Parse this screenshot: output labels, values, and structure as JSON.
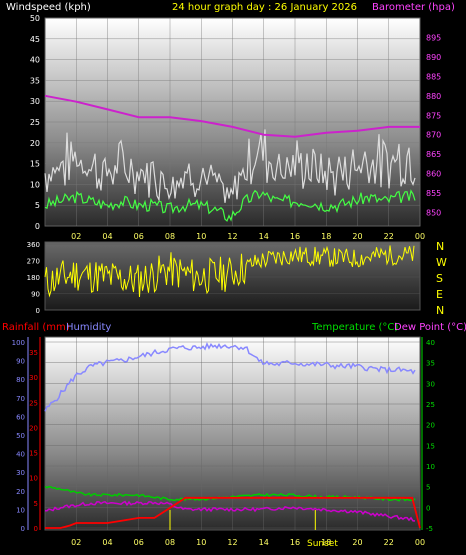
{
  "header": {
    "left": "Windspeed (kph)",
    "center": "24 hour graph day : 26 January 2026",
    "right": "Barometer (hpa)"
  },
  "labels": {
    "rainfall": "Rainfall (mm)",
    "humidity": "Humidity",
    "temperature": "Temperature (°C)",
    "dewpoint": "Dew Point (°C)",
    "sunset": "Sunset"
  },
  "colors": {
    "wind": "#ffffff",
    "gust": "#dddddd",
    "avgwind": "#44ff44",
    "barometer": "#cc22cc",
    "direction": "#ffff00",
    "rain": "#ff0000",
    "humidity": "#8888ff",
    "temperature": "#00cc00",
    "dewpoint": "#cc00cc",
    "tempaxis": "#00dd00",
    "headerleft": "#ffffff",
    "headercenter": "#ffff00",
    "baroaxis": "#ff44ff"
  },
  "chart_data": [
    {
      "type": "line",
      "title": "24 hour graph day : 26 January 2026",
      "x_ticks": [
        "02",
        "04",
        "06",
        "08",
        "10",
        "12",
        "14",
        "16",
        "18",
        "20",
        "22",
        "00"
      ],
      "left_axis": {
        "label": "Windspeed (kph)",
        "ticks": [
          0,
          5,
          10,
          15,
          20,
          25,
          30,
          35,
          40,
          45,
          50
        ]
      },
      "right_axis": {
        "label": "Barometer (hpa)",
        "ticks": [
          850,
          855,
          860,
          865,
          870,
          875,
          880,
          885,
          890,
          895
        ]
      },
      "series": [
        {
          "name": "Barometer (hpa)",
          "x": [
            0,
            2,
            4,
            6,
            8,
            10,
            12,
            14,
            16,
            18,
            20,
            22,
            24
          ],
          "values": [
            880.0,
            878.5,
            876.5,
            874.5,
            874.5,
            873.5,
            872.0,
            870.0,
            869.5,
            870.5,
            871.0,
            872.0,
            872.0
          ]
        },
        {
          "name": "Windspeed (kph)",
          "x": [
            0,
            1,
            2,
            3,
            4,
            5,
            6,
            7,
            8,
            9,
            10,
            11,
            12,
            13,
            14,
            15,
            16,
            17,
            18,
            19,
            20,
            21,
            22,
            23,
            24
          ],
          "values": [
            5,
            6,
            7,
            6,
            5,
            6,
            5,
            5,
            4,
            5,
            5,
            4,
            2,
            6,
            8,
            6,
            6,
            6,
            5,
            5,
            6,
            7,
            6,
            7,
            7
          ]
        }
      ]
    },
    {
      "type": "line",
      "left_axis": {
        "ticks": [
          0,
          90,
          180,
          270,
          360
        ]
      },
      "right_labels": [
        "N",
        "W",
        "S",
        "E",
        "N"
      ],
      "series": [
        {
          "name": "Wind direction",
          "x": [
            0,
            2,
            4,
            6,
            8,
            10,
            12,
            14,
            16,
            18,
            20,
            22,
            24
          ],
          "values": [
            150,
            200,
            180,
            160,
            220,
            180,
            200,
            270,
            300,
            290,
            280,
            300,
            300
          ]
        }
      ]
    },
    {
      "type": "line",
      "x_ticks": [
        "02",
        "04",
        "06",
        "08",
        "10",
        "12",
        "14",
        "16",
        "18",
        "20",
        "22",
        "00"
      ],
      "rain_axis": {
        "label": "Rainfall (mm)",
        "ticks": [
          0,
          5,
          10,
          15,
          20,
          25,
          30,
          35
        ]
      },
      "humidity_axis": {
        "label": "Humidity",
        "ticks": [
          0,
          10,
          20,
          30,
          40,
          50,
          60,
          70,
          80,
          90,
          100
        ]
      },
      "temp_axis": {
        "label": "Temperature (°C) Dew Point (°C)",
        "ticks": [
          -5,
          0,
          5,
          10,
          15,
          20,
          25,
          30,
          35,
          40
        ]
      },
      "annotations": [
        "Sunset"
      ],
      "series": [
        {
          "name": "Humidity",
          "x": [
            0,
            1,
            2,
            3,
            4,
            5,
            6,
            7,
            8,
            9,
            10,
            11,
            12,
            13,
            14,
            15,
            16,
            17,
            18,
            19,
            20,
            21,
            22,
            23,
            24
          ],
          "values": [
            63,
            72,
            82,
            87,
            89,
            90,
            92,
            94,
            96,
            97,
            97,
            98,
            98,
            97,
            89,
            88,
            89,
            88,
            88,
            87,
            87,
            86,
            85,
            85,
            84
          ]
        },
        {
          "name": "Rainfall (mm)",
          "x": [
            0,
            1,
            1.6,
            2,
            3,
            4,
            5,
            6,
            7,
            7.5,
            8,
            8.5,
            9,
            10,
            14,
            18,
            22,
            23.5,
            24
          ],
          "values": [
            0,
            0,
            0.5,
            1,
            1,
            1,
            1.5,
            2,
            2,
            3,
            4,
            5,
            6,
            6,
            6,
            6,
            6,
            6,
            0
          ]
        },
        {
          "name": "Temperature (°C)",
          "x": [
            0,
            1,
            2,
            3,
            4,
            5,
            6,
            7,
            8,
            9,
            10,
            12,
            14,
            16,
            18,
            20,
            22,
            24
          ],
          "values": [
            5,
            4.5,
            3.5,
            3,
            3,
            3,
            3,
            2.5,
            2,
            2,
            2,
            2.5,
            3,
            3,
            2.5,
            2.5,
            2,
            1.8
          ]
        },
        {
          "name": "Dew Point (°C)",
          "x": [
            0,
            1,
            2,
            3,
            4,
            5,
            6,
            7,
            8,
            9,
            10,
            12,
            14,
            16,
            18,
            20,
            22,
            24
          ],
          "values": [
            -1,
            0,
            0.5,
            1,
            1,
            1,
            1,
            1.2,
            0.8,
            -0.5,
            -0.5,
            -0.5,
            -0.5,
            0,
            -0.5,
            -1,
            -2,
            -3
          ]
        }
      ]
    }
  ]
}
